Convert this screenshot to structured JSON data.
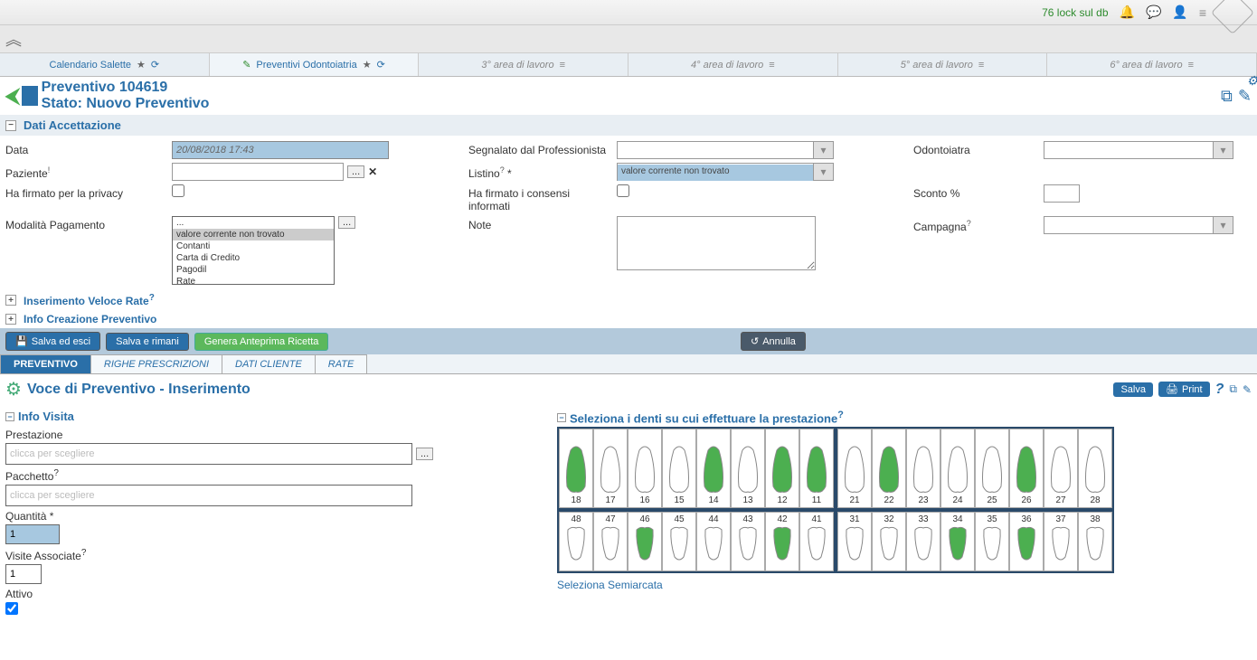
{
  "header": {
    "lock_text": "76 lock sul db",
    "icons": [
      "bell-icon",
      "chat-icon",
      "user-icon",
      "menu-icon",
      "logo-icon"
    ]
  },
  "work_tabs": [
    {
      "label": "Calendario Salette",
      "active": false,
      "first": true
    },
    {
      "label": "Preventivi Odontoiatria",
      "active": true
    },
    {
      "label": "3° area di lavoro",
      "active": false
    },
    {
      "label": "4° area di lavoro",
      "active": false
    },
    {
      "label": "5° area di lavoro",
      "active": false
    },
    {
      "label": "6° area di lavoro",
      "active": false
    }
  ],
  "page_title": {
    "line1": "Preventivo 104619",
    "line2": "Stato: Nuovo Preventivo"
  },
  "sections": {
    "dati_accett": "Dati Accettazione",
    "ins_rate": "Inserimento Veloce Rate",
    "info_crea": "Info Creazione Preventivo"
  },
  "form": {
    "data_lbl": "Data",
    "data_val": "20/08/2018 17:43",
    "paziente_lbl": "Paziente",
    "paziente_sup": "!",
    "privacy_lbl": "Ha firmato per la privacy",
    "pagamento_lbl": "Modalità Pagamento",
    "pagamento_opts": [
      "...",
      "valore corrente non trovato",
      "Contanti",
      "Carta di Credito",
      "Pagodil",
      "Rate"
    ],
    "segnalato_lbl": "Segnalato dal Professionista",
    "listino_lbl": "Listino",
    "listino_sup": "?",
    "listino_req": "*",
    "listino_val": "valore corrente non trovato",
    "consensi_lbl": "Ha firmato i consensi informati",
    "note_lbl": "Note",
    "odonto_lbl": "Odontoiatra",
    "sconto_lbl": "Sconto %",
    "campagna_lbl": "Campagna",
    "campagna_sup": "?"
  },
  "action_bar": {
    "salva_esci": "Salva ed esci",
    "salva_rimani": "Salva e rimani",
    "anteprima": "Genera Anteprima Ricetta",
    "annulla": "Annulla"
  },
  "subtabs": [
    "PREVENTIVO",
    "RIGHE PRESCRIZIONI",
    "DATI CLIENTE",
    "RATE"
  ],
  "voce": {
    "title": "Voce di Preventivo - Inserimento",
    "save": "Salva",
    "print": "Print"
  },
  "info_visita": {
    "hdr": "Info Visita",
    "prest_lbl": "Prestazione",
    "prest_ph": "clicca per scegliere",
    "pacch_lbl": "Pacchetto",
    "pacch_sup": "?",
    "pacch_ph": "clicca per scegliere",
    "quant_lbl": "Quantità",
    "quant_req": "*",
    "quant_val": "1",
    "visite_lbl": "Visite Associate",
    "visite_sup": "?",
    "visite_val": "1",
    "attivo_lbl": "Attivo"
  },
  "teeth": {
    "hdr": "Seleziona i denti su cui effettuare la prestazione",
    "hdr_sup": "?",
    "semi": "Seleziona Semiarcata",
    "upper_left": [
      {
        "n": 18,
        "sel": true
      },
      {
        "n": 17,
        "sel": false
      },
      {
        "n": 16,
        "sel": false
      },
      {
        "n": 15,
        "sel": false
      },
      {
        "n": 14,
        "sel": true
      },
      {
        "n": 13,
        "sel": false
      },
      {
        "n": 12,
        "sel": true
      },
      {
        "n": 11,
        "sel": true
      }
    ],
    "upper_right": [
      {
        "n": 21,
        "sel": false
      },
      {
        "n": 22,
        "sel": true
      },
      {
        "n": 23,
        "sel": false
      },
      {
        "n": 24,
        "sel": false
      },
      {
        "n": 25,
        "sel": false
      },
      {
        "n": 26,
        "sel": true
      },
      {
        "n": 27,
        "sel": false
      },
      {
        "n": 28,
        "sel": false
      }
    ],
    "lower_left": [
      {
        "n": 48,
        "sel": false
      },
      {
        "n": 47,
        "sel": false
      },
      {
        "n": 46,
        "sel": true
      },
      {
        "n": 45,
        "sel": false
      },
      {
        "n": 44,
        "sel": false
      },
      {
        "n": 43,
        "sel": false
      },
      {
        "n": 42,
        "sel": true
      },
      {
        "n": 41,
        "sel": false
      }
    ],
    "lower_right": [
      {
        "n": 31,
        "sel": false
      },
      {
        "n": 32,
        "sel": false
      },
      {
        "n": 33,
        "sel": false
      },
      {
        "n": 34,
        "sel": true
      },
      {
        "n": 35,
        "sel": false
      },
      {
        "n": 36,
        "sel": true
      },
      {
        "n": 37,
        "sel": false
      },
      {
        "n": 38,
        "sel": false
      }
    ],
    "sel_color": "#4caf50",
    "unsel_color": "#ffffff",
    "stroke": "#888"
  }
}
